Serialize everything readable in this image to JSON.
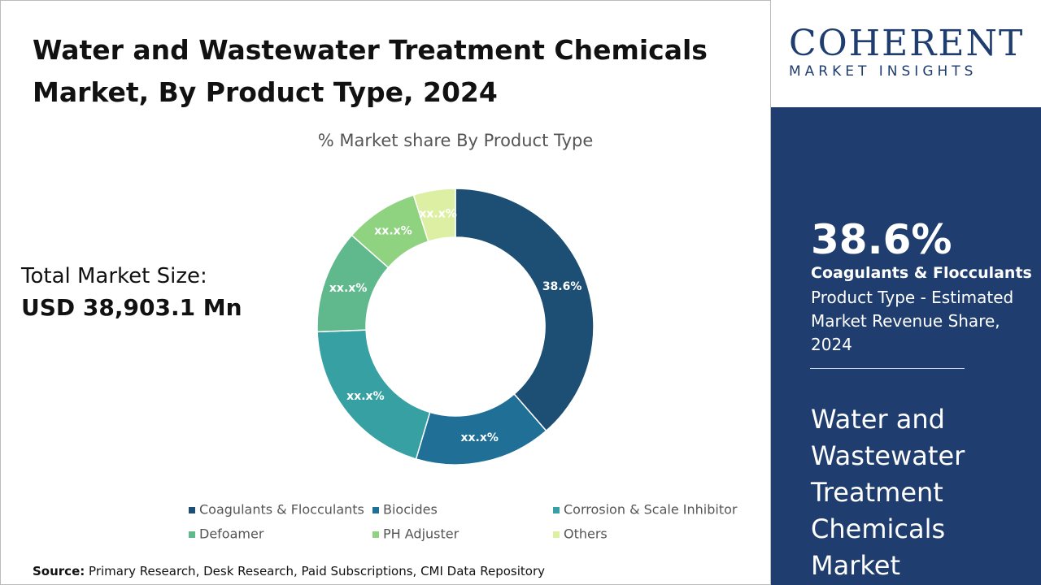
{
  "title": "Water and Wastewater Treatment Chemicals Market, By Product Type, 2024",
  "total_market_size": {
    "label": "Total Market Size:",
    "value": "USD 38,903.1 Mn"
  },
  "source": {
    "label": "Source:",
    "text": "Primary Research, Desk Research, Paid Subscriptions, CMI Data Repository"
  },
  "logo": {
    "name": "COHERENT",
    "tagline": "MARKET INSIGHTS"
  },
  "highlight": {
    "value": "38.6%",
    "segment": "Coagulants & Flocculants",
    "description": "Product Type - Estimated Market Revenue Share, 2024",
    "market": "Water and Wastewater Treatment Chemicals Market"
  },
  "chart_data": {
    "type": "donut",
    "title": "% Market share By Product Type",
    "categories": [
      "Coagulants & Flocculants",
      "Biocides",
      "Corrosion & Scale Inhibitor",
      "Defoamer",
      "PH Adjuster",
      "Others"
    ],
    "values": [
      38.6,
      16.0,
      19.8,
      12.1,
      8.6,
      4.9
    ],
    "value_labels": [
      "38.6%",
      "xx.x%",
      "xx.x%",
      "xx.x%",
      "xx.x%",
      "xx.x%"
    ],
    "colors": [
      "#1d4e73",
      "#1f6f97",
      "#36a0a2",
      "#5fb98c",
      "#8fd27f",
      "#dcefa2"
    ]
  }
}
